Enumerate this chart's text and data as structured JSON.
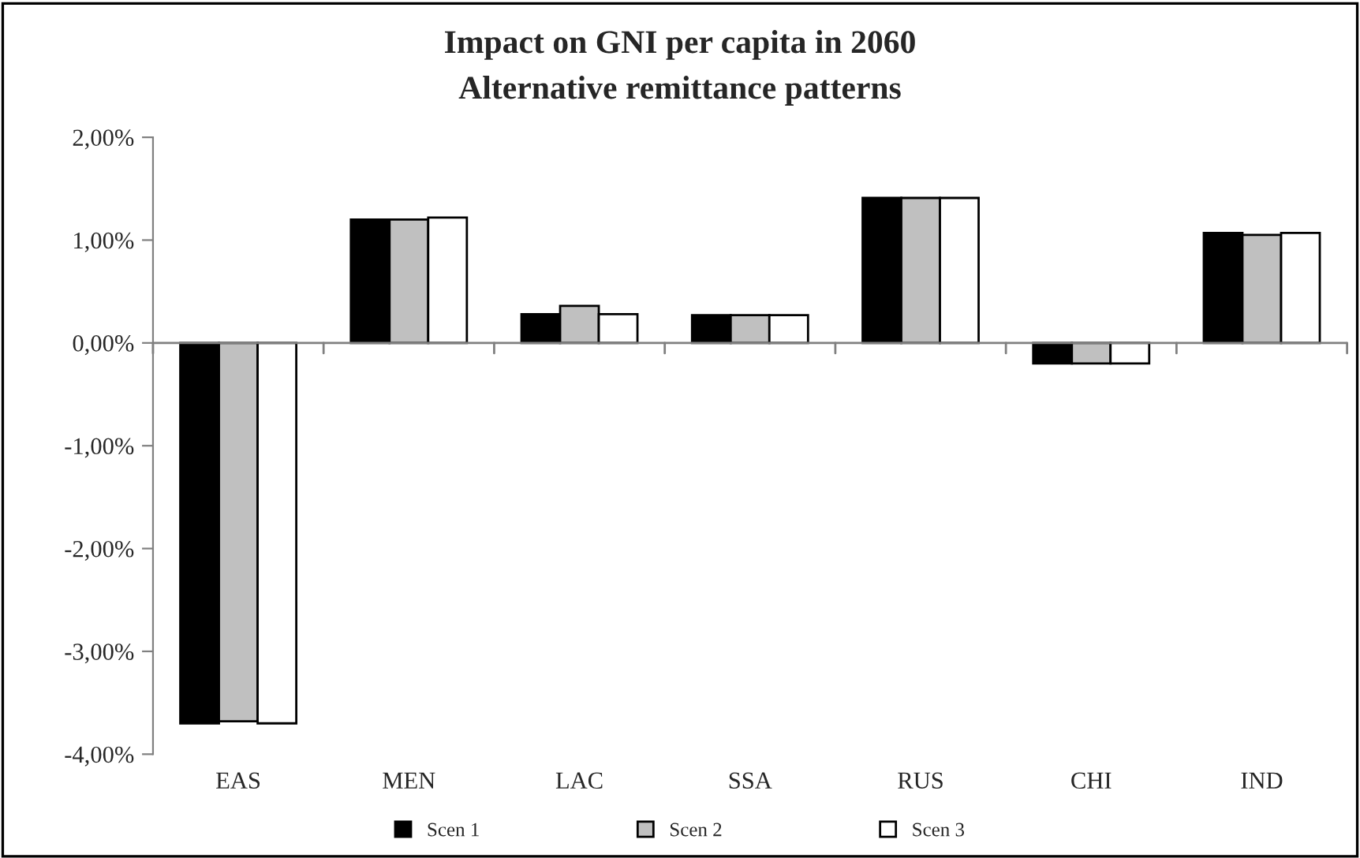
{
  "chart_data": {
    "type": "bar",
    "title": "Impact on GNI per capita in 2060\nAlternative remittance patterns",
    "categories": [
      "EAS",
      "MEN",
      "LAC",
      "SSA",
      "RUS",
      "CHI",
      "IND"
    ],
    "series": [
      {
        "name": "Scen 1",
        "color": "#000000",
        "values": [
          -3.7,
          1.2,
          0.28,
          0.27,
          1.41,
          -0.2,
          1.07
        ]
      },
      {
        "name": "Scen 2",
        "color": "#c0c0c0",
        "values": [
          -3.68,
          1.2,
          0.36,
          0.27,
          1.41,
          -0.2,
          1.05
        ]
      },
      {
        "name": "Scen 3",
        "color": "#ffffff",
        "values": [
          -3.7,
          1.22,
          0.28,
          0.27,
          1.41,
          -0.2,
          1.07
        ]
      }
    ],
    "ylim": [
      -4,
      2
    ],
    "yticks": [
      {
        "value": -4,
        "label": "-4,00%"
      },
      {
        "value": -3,
        "label": "-3,00%"
      },
      {
        "value": -2,
        "label": "-2,00%"
      },
      {
        "value": -1,
        "label": "-1,00%"
      },
      {
        "value": 0,
        "label": "0,00%"
      },
      {
        "value": 1,
        "label": "1,00%"
      },
      {
        "value": 2,
        "label": "2,00%"
      }
    ],
    "ref_lines": [
      {
        "axis": "y",
        "value": 0,
        "color": "#808080"
      }
    ],
    "grid": false,
    "legend": "bottom"
  }
}
